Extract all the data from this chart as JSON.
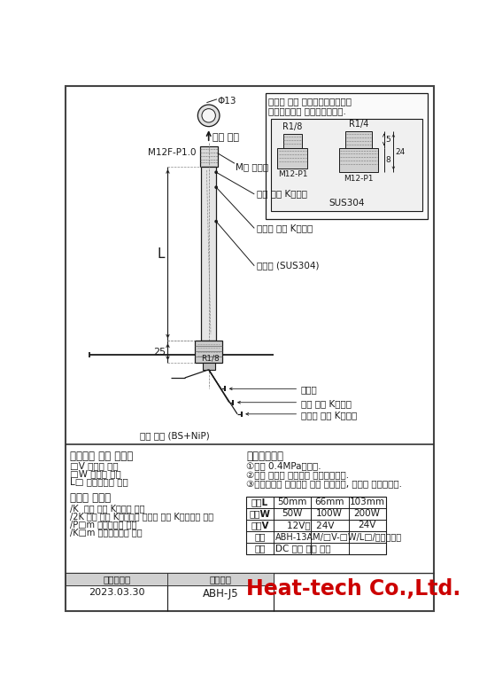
{
  "bg_color": "#ffffff",
  "border_color": "#333333",
  "line_color": "#1a1a1a",
  "title_note_line1": "체단의 나사 포함이음새쇼장식은",
  "title_note_line2": "특별주문에서 제작하겠습니다.",
  "label_열풍출구": "열풍 출구",
  "label_M12": "M12F-P1.0",
  "label_M형": "M형 내나사",
  "label_열풍온도": "열풍 온도 K열전대",
  "label_발열체온도": "발열체 온도 K열전대",
  "label_금속관": "금속관 (SUS304)",
  "label_L": "L",
  "label_25": "25",
  "label_R1/8_bottom": "R1/8",
  "label_전원선": "전원선",
  "label_열풍온도2": "열풍 온도 K열전대",
  "label_발열체온도2": "발열체 온도 K열전대",
  "label_기체입구": "기체 입구 (BS+NiP)",
  "label_Φ13": "Φ13",
  "label_R1/8_inset": "R1/8",
  "label_R1/4_inset": "R1/4",
  "label_SUS304": "SUS304",
  "label_M12P1_left": "M12-P1",
  "label_M12P1_right": "M12-P1",
  "dim_5": "5",
  "dim_8": "8",
  "dim_24": "24",
  "section_title": "》주문시 사양 지정》",
  "section_order": "》주의사항》",
  "order1": "①내압 0.4MPa입니다.",
  "order2": "②공급 기체는 드레인을 제거하십시오.",
  "order3": "③저온기체를 공급하지 않고 가열하면, 히터는 소손합니다.",
  "spec_label1": "관장L",
  "spec_label2": "전력W",
  "spec_label3": "전압V",
  "spec_label4": "형식",
  "spec_label5": "품명",
  "spec_v1a": "50mm",
  "spec_v1b": "66mm",
  "spec_v1c": "103mm",
  "spec_v2a": "50W",
  "spec_v2b": "100W",
  "spec_v2c": "200W",
  "spec_v3a": "12V，  24V",
  "spec_v3b": "24V",
  "spec_v4": "ABH-13AM/□V-□W/L□/オプション",
  "spec_v5": "DC 전원 열풍 히터",
  "order_spec1": "□V 전압의 지정",
  "order_spec2": "□W 전력의 지정",
  "order_spec3": "L□ 기준관장의 지정",
  "option_title": "》옵션 대응》",
  "option1": "/K  열풍 온도 K열전대 추가",
  "option2": "/2K 열풍 온도 K열전대와 발열체 온도 K열전대의 추가",
  "option3": "/P□m 전원선장이 지정",
  "option4": "/K□m 열전대선장이 지정",
  "date_label": "제조년월일",
  "doc_label": "도면번호",
  "date_val": "2023.03.30",
  "doc_val": "ABH-J5",
  "company": "Heat-tech Co.,Ltd."
}
